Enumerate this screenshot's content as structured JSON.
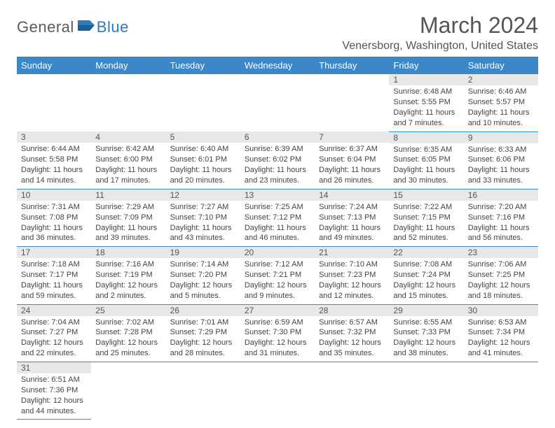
{
  "logo": {
    "part1": "General",
    "part2": "Blue"
  },
  "title": "March 2024",
  "location": "Venersborg, Washington, United States",
  "colors": {
    "header_bg": "#3b87c8",
    "header_text": "#ffffff",
    "daynum_bg": "#e8e8e8",
    "border": "#3b87c8",
    "logo_gray": "#5a5a5a",
    "logo_blue": "#2a7bbf",
    "title_color": "#555555",
    "text_color": "#444444",
    "background": "#ffffff"
  },
  "typography": {
    "month_title_fontsize": 32,
    "location_fontsize": 16,
    "weekday_fontsize": 13,
    "daynum_fontsize": 12,
    "cell_fontsize": 11
  },
  "weekdays": [
    "Sunday",
    "Monday",
    "Tuesday",
    "Wednesday",
    "Thursday",
    "Friday",
    "Saturday"
  ],
  "weeks": [
    [
      {
        "blank": true
      },
      {
        "blank": true
      },
      {
        "blank": true
      },
      {
        "blank": true
      },
      {
        "blank": true
      },
      {
        "day": "1",
        "sunrise": "Sunrise: 6:48 AM",
        "sunset": "Sunset: 5:55 PM",
        "daylight": "Daylight: 11 hours and 7 minutes."
      },
      {
        "day": "2",
        "sunrise": "Sunrise: 6:46 AM",
        "sunset": "Sunset: 5:57 PM",
        "daylight": "Daylight: 11 hours and 10 minutes."
      }
    ],
    [
      {
        "day": "3",
        "sunrise": "Sunrise: 6:44 AM",
        "sunset": "Sunset: 5:58 PM",
        "daylight": "Daylight: 11 hours and 14 minutes."
      },
      {
        "day": "4",
        "sunrise": "Sunrise: 6:42 AM",
        "sunset": "Sunset: 6:00 PM",
        "daylight": "Daylight: 11 hours and 17 minutes."
      },
      {
        "day": "5",
        "sunrise": "Sunrise: 6:40 AM",
        "sunset": "Sunset: 6:01 PM",
        "daylight": "Daylight: 11 hours and 20 minutes."
      },
      {
        "day": "6",
        "sunrise": "Sunrise: 6:39 AM",
        "sunset": "Sunset: 6:02 PM",
        "daylight": "Daylight: 11 hours and 23 minutes."
      },
      {
        "day": "7",
        "sunrise": "Sunrise: 6:37 AM",
        "sunset": "Sunset: 6:04 PM",
        "daylight": "Daylight: 11 hours and 26 minutes."
      },
      {
        "day": "8",
        "sunrise": "Sunrise: 6:35 AM",
        "sunset": "Sunset: 6:05 PM",
        "daylight": "Daylight: 11 hours and 30 minutes."
      },
      {
        "day": "9",
        "sunrise": "Sunrise: 6:33 AM",
        "sunset": "Sunset: 6:06 PM",
        "daylight": "Daylight: 11 hours and 33 minutes."
      }
    ],
    [
      {
        "day": "10",
        "sunrise": "Sunrise: 7:31 AM",
        "sunset": "Sunset: 7:08 PM",
        "daylight": "Daylight: 11 hours and 36 minutes."
      },
      {
        "day": "11",
        "sunrise": "Sunrise: 7:29 AM",
        "sunset": "Sunset: 7:09 PM",
        "daylight": "Daylight: 11 hours and 39 minutes."
      },
      {
        "day": "12",
        "sunrise": "Sunrise: 7:27 AM",
        "sunset": "Sunset: 7:10 PM",
        "daylight": "Daylight: 11 hours and 43 minutes."
      },
      {
        "day": "13",
        "sunrise": "Sunrise: 7:25 AM",
        "sunset": "Sunset: 7:12 PM",
        "daylight": "Daylight: 11 hours and 46 minutes."
      },
      {
        "day": "14",
        "sunrise": "Sunrise: 7:24 AM",
        "sunset": "Sunset: 7:13 PM",
        "daylight": "Daylight: 11 hours and 49 minutes."
      },
      {
        "day": "15",
        "sunrise": "Sunrise: 7:22 AM",
        "sunset": "Sunset: 7:15 PM",
        "daylight": "Daylight: 11 hours and 52 minutes."
      },
      {
        "day": "16",
        "sunrise": "Sunrise: 7:20 AM",
        "sunset": "Sunset: 7:16 PM",
        "daylight": "Daylight: 11 hours and 56 minutes."
      }
    ],
    [
      {
        "day": "17",
        "sunrise": "Sunrise: 7:18 AM",
        "sunset": "Sunset: 7:17 PM",
        "daylight": "Daylight: 11 hours and 59 minutes."
      },
      {
        "day": "18",
        "sunrise": "Sunrise: 7:16 AM",
        "sunset": "Sunset: 7:19 PM",
        "daylight": "Daylight: 12 hours and 2 minutes."
      },
      {
        "day": "19",
        "sunrise": "Sunrise: 7:14 AM",
        "sunset": "Sunset: 7:20 PM",
        "daylight": "Daylight: 12 hours and 5 minutes."
      },
      {
        "day": "20",
        "sunrise": "Sunrise: 7:12 AM",
        "sunset": "Sunset: 7:21 PM",
        "daylight": "Daylight: 12 hours and 9 minutes."
      },
      {
        "day": "21",
        "sunrise": "Sunrise: 7:10 AM",
        "sunset": "Sunset: 7:23 PM",
        "daylight": "Daylight: 12 hours and 12 minutes."
      },
      {
        "day": "22",
        "sunrise": "Sunrise: 7:08 AM",
        "sunset": "Sunset: 7:24 PM",
        "daylight": "Daylight: 12 hours and 15 minutes."
      },
      {
        "day": "23",
        "sunrise": "Sunrise: 7:06 AM",
        "sunset": "Sunset: 7:25 PM",
        "daylight": "Daylight: 12 hours and 18 minutes."
      }
    ],
    [
      {
        "day": "24",
        "sunrise": "Sunrise: 7:04 AM",
        "sunset": "Sunset: 7:27 PM",
        "daylight": "Daylight: 12 hours and 22 minutes."
      },
      {
        "day": "25",
        "sunrise": "Sunrise: 7:02 AM",
        "sunset": "Sunset: 7:28 PM",
        "daylight": "Daylight: 12 hours and 25 minutes."
      },
      {
        "day": "26",
        "sunrise": "Sunrise: 7:01 AM",
        "sunset": "Sunset: 7:29 PM",
        "daylight": "Daylight: 12 hours and 28 minutes."
      },
      {
        "day": "27",
        "sunrise": "Sunrise: 6:59 AM",
        "sunset": "Sunset: 7:30 PM",
        "daylight": "Daylight: 12 hours and 31 minutes."
      },
      {
        "day": "28",
        "sunrise": "Sunrise: 6:57 AM",
        "sunset": "Sunset: 7:32 PM",
        "daylight": "Daylight: 12 hours and 35 minutes."
      },
      {
        "day": "29",
        "sunrise": "Sunrise: 6:55 AM",
        "sunset": "Sunset: 7:33 PM",
        "daylight": "Daylight: 12 hours and 38 minutes."
      },
      {
        "day": "30",
        "sunrise": "Sunrise: 6:53 AM",
        "sunset": "Sunset: 7:34 PM",
        "daylight": "Daylight: 12 hours and 41 minutes."
      }
    ],
    [
      {
        "day": "31",
        "sunrise": "Sunrise: 6:51 AM",
        "sunset": "Sunset: 7:36 PM",
        "daylight": "Daylight: 12 hours and 44 minutes."
      },
      {
        "blank": true
      },
      {
        "blank": true
      },
      {
        "blank": true
      },
      {
        "blank": true
      },
      {
        "blank": true
      },
      {
        "blank": true
      }
    ]
  ]
}
